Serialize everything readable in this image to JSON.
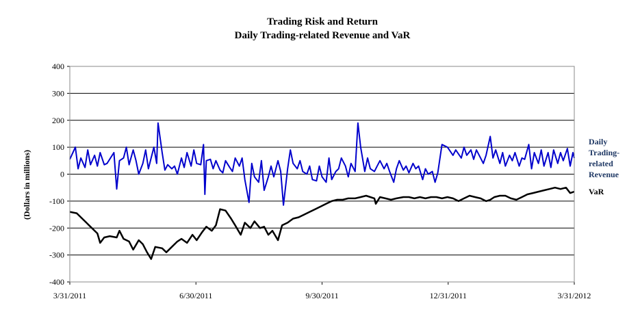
{
  "chart_data": {
    "type": "line",
    "title_line1": "Trading Risk and Return",
    "title_line2": "Daily Trading-related Revenue and VaR",
    "ylabel": "(Dollars in millions)",
    "xlabel": "",
    "ylim": [
      -400,
      400
    ],
    "yticks": [
      400,
      300,
      200,
      100,
      0,
      -100,
      -200,
      -300,
      -400
    ],
    "ytick_labels": [
      "400",
      "300",
      "200",
      "100",
      "0",
      "-100",
      "-200",
      "-300",
      "-400"
    ],
    "xlim": [
      "2011-03-31",
      "2012-03-31"
    ],
    "xtick_labels": [
      "3/31/2011",
      "6/30/2011",
      "9/30/2011",
      "12/31/2011",
      "3/31/2012"
    ],
    "grid": "horizontal",
    "legend_placement": "right",
    "series": [
      {
        "name": "Daily Trading-related Revenue",
        "label_lines": [
          "Daily",
          "Trading-",
          "related",
          "Revenue"
        ],
        "color": "#0000cc",
        "points": [
          [
            "2011-03-31",
            55
          ],
          [
            "2011-04-04",
            100
          ],
          [
            "2011-04-06",
            20
          ],
          [
            "2011-04-08",
            60
          ],
          [
            "2011-04-11",
            25
          ],
          [
            "2011-04-13",
            90
          ],
          [
            "2011-04-15",
            35
          ],
          [
            "2011-04-18",
            70
          ],
          [
            "2011-04-20",
            30
          ],
          [
            "2011-04-22",
            80
          ],
          [
            "2011-04-25",
            35
          ],
          [
            "2011-04-27",
            40
          ],
          [
            "2011-05-02",
            80
          ],
          [
            "2011-05-04",
            -55
          ],
          [
            "2011-05-06",
            50
          ],
          [
            "2011-05-09",
            60
          ],
          [
            "2011-05-11",
            100
          ],
          [
            "2011-05-13",
            35
          ],
          [
            "2011-05-16",
            90
          ],
          [
            "2011-05-18",
            50
          ],
          [
            "2011-05-20",
            0
          ],
          [
            "2011-05-23",
            40
          ],
          [
            "2011-05-25",
            90
          ],
          [
            "2011-05-27",
            20
          ],
          [
            "2011-05-31",
            100
          ],
          [
            "2011-06-02",
            40
          ],
          [
            "2011-06-03",
            190
          ],
          [
            "2011-06-06",
            80
          ],
          [
            "2011-06-08",
            15
          ],
          [
            "2011-06-10",
            35
          ],
          [
            "2011-06-13",
            20
          ],
          [
            "2011-06-15",
            30
          ],
          [
            "2011-06-17",
            0
          ],
          [
            "2011-06-20",
            60
          ],
          [
            "2011-06-22",
            25
          ],
          [
            "2011-06-24",
            80
          ],
          [
            "2011-06-27",
            30
          ],
          [
            "2011-06-29",
            90
          ],
          [
            "2011-07-01",
            40
          ],
          [
            "2011-07-04",
            35
          ],
          [
            "2011-07-06",
            110
          ],
          [
            "2011-07-07",
            -75
          ],
          [
            "2011-07-08",
            50
          ],
          [
            "2011-07-11",
            55
          ],
          [
            "2011-07-13",
            20
          ],
          [
            "2011-07-15",
            50
          ],
          [
            "2011-07-18",
            15
          ],
          [
            "2011-07-20",
            5
          ],
          [
            "2011-07-22",
            50
          ],
          [
            "2011-07-25",
            25
          ],
          [
            "2011-07-27",
            10
          ],
          [
            "2011-07-29",
            60
          ],
          [
            "2011-08-01",
            30
          ],
          [
            "2011-08-03",
            60
          ],
          [
            "2011-08-05",
            -20
          ],
          [
            "2011-08-08",
            -105
          ],
          [
            "2011-08-10",
            40
          ],
          [
            "2011-08-12",
            -10
          ],
          [
            "2011-08-15",
            -30
          ],
          [
            "2011-08-17",
            50
          ],
          [
            "2011-08-19",
            -60
          ],
          [
            "2011-08-22",
            -10
          ],
          [
            "2011-08-24",
            30
          ],
          [
            "2011-08-26",
            -10
          ],
          [
            "2011-08-29",
            50
          ],
          [
            "2011-08-31",
            10
          ],
          [
            "2011-09-02",
            -115
          ],
          [
            "2011-09-05",
            20
          ],
          [
            "2011-09-07",
            90
          ],
          [
            "2011-09-09",
            40
          ],
          [
            "2011-09-12",
            20
          ],
          [
            "2011-09-14",
            50
          ],
          [
            "2011-09-16",
            10
          ],
          [
            "2011-09-19",
            0
          ],
          [
            "2011-09-21",
            30
          ],
          [
            "2011-09-23",
            -20
          ],
          [
            "2011-09-26",
            -25
          ],
          [
            "2011-09-28",
            30
          ],
          [
            "2011-09-30",
            -10
          ],
          [
            "2011-10-03",
            -30
          ],
          [
            "2011-10-05",
            60
          ],
          [
            "2011-10-07",
            -20
          ],
          [
            "2011-10-10",
            10
          ],
          [
            "2011-10-12",
            20
          ],
          [
            "2011-10-14",
            60
          ],
          [
            "2011-10-17",
            30
          ],
          [
            "2011-10-19",
            -10
          ],
          [
            "2011-10-21",
            40
          ],
          [
            "2011-10-24",
            10
          ],
          [
            "2011-10-26",
            190
          ],
          [
            "2011-10-28",
            100
          ],
          [
            "2011-10-31",
            10
          ],
          [
            "2011-11-02",
            60
          ],
          [
            "2011-11-04",
            20
          ],
          [
            "2011-11-07",
            10
          ],
          [
            "2011-11-09",
            30
          ],
          [
            "2011-11-11",
            50
          ],
          [
            "2011-11-14",
            20
          ],
          [
            "2011-11-16",
            40
          ],
          [
            "2011-11-18",
            10
          ],
          [
            "2011-11-21",
            -30
          ],
          [
            "2011-11-23",
            20
          ],
          [
            "2011-11-25",
            50
          ],
          [
            "2011-11-28",
            15
          ],
          [
            "2011-11-30",
            30
          ],
          [
            "2011-12-02",
            5
          ],
          [
            "2011-12-05",
            40
          ],
          [
            "2011-12-07",
            20
          ],
          [
            "2011-12-09",
            30
          ],
          [
            "2011-12-12",
            -20
          ],
          [
            "2011-12-14",
            20
          ],
          [
            "2011-12-16",
            0
          ],
          [
            "2011-12-19",
            10
          ],
          [
            "2011-12-21",
            -30
          ],
          [
            "2011-12-23",
            5
          ],
          [
            "2011-12-26",
            110
          ],
          [
            "2011-12-28",
            105
          ],
          [
            "2011-12-30",
            100
          ],
          [
            "2012-01-03",
            70
          ],
          [
            "2012-01-05",
            90
          ],
          [
            "2012-01-09",
            60
          ],
          [
            "2012-01-11",
            100
          ],
          [
            "2012-01-13",
            70
          ],
          [
            "2012-01-16",
            90
          ],
          [
            "2012-01-18",
            55
          ],
          [
            "2012-01-20",
            90
          ],
          [
            "2012-01-23",
            60
          ],
          [
            "2012-01-25",
            40
          ],
          [
            "2012-01-27",
            70
          ],
          [
            "2012-01-30",
            140
          ],
          [
            "2012-02-01",
            60
          ],
          [
            "2012-02-03",
            90
          ],
          [
            "2012-02-06",
            40
          ],
          [
            "2012-02-08",
            80
          ],
          [
            "2012-02-10",
            30
          ],
          [
            "2012-02-13",
            70
          ],
          [
            "2012-02-15",
            50
          ],
          [
            "2012-02-17",
            80
          ],
          [
            "2012-02-20",
            30
          ],
          [
            "2012-02-22",
            60
          ],
          [
            "2012-02-24",
            55
          ],
          [
            "2012-02-27",
            110
          ],
          [
            "2012-02-29",
            20
          ],
          [
            "2012-03-02",
            80
          ],
          [
            "2012-03-05",
            40
          ],
          [
            "2012-03-07",
            90
          ],
          [
            "2012-03-09",
            30
          ],
          [
            "2012-03-12",
            80
          ],
          [
            "2012-03-14",
            25
          ],
          [
            "2012-03-16",
            90
          ],
          [
            "2012-03-19",
            40
          ],
          [
            "2012-03-21",
            80
          ],
          [
            "2012-03-23",
            50
          ],
          [
            "2012-03-26",
            95
          ],
          [
            "2012-03-28",
            30
          ],
          [
            "2012-03-30",
            80
          ],
          [
            "2012-03-31",
            60
          ]
        ]
      },
      {
        "name": "VaR",
        "label_lines": [
          "VaR"
        ],
        "color": "#000000",
        "points": [
          [
            "2011-03-31",
            -140
          ],
          [
            "2011-04-05",
            -145
          ],
          [
            "2011-04-10",
            -170
          ],
          [
            "2011-04-15",
            -195
          ],
          [
            "2011-04-20",
            -220
          ],
          [
            "2011-04-22",
            -255
          ],
          [
            "2011-04-25",
            -235
          ],
          [
            "2011-04-29",
            -230
          ],
          [
            "2011-05-04",
            -235
          ],
          [
            "2011-05-06",
            -210
          ],
          [
            "2011-05-09",
            -240
          ],
          [
            "2011-05-13",
            -250
          ],
          [
            "2011-05-16",
            -280
          ],
          [
            "2011-05-20",
            -245
          ],
          [
            "2011-05-23",
            -260
          ],
          [
            "2011-05-26",
            -290
          ],
          [
            "2011-05-29",
            -315
          ],
          [
            "2011-06-01",
            -270
          ],
          [
            "2011-06-06",
            -275
          ],
          [
            "2011-06-09",
            -290
          ],
          [
            "2011-06-13",
            -270
          ],
          [
            "2011-06-17",
            -250
          ],
          [
            "2011-06-20",
            -240
          ],
          [
            "2011-06-24",
            -255
          ],
          [
            "2011-06-28",
            -225
          ],
          [
            "2011-07-01",
            -245
          ],
          [
            "2011-07-05",
            -215
          ],
          [
            "2011-07-08",
            -195
          ],
          [
            "2011-07-12",
            -210
          ],
          [
            "2011-07-15",
            -190
          ],
          [
            "2011-07-18",
            -130
          ],
          [
            "2011-07-22",
            -135
          ],
          [
            "2011-07-26",
            -165
          ],
          [
            "2011-07-29",
            -190
          ],
          [
            "2011-08-02",
            -225
          ],
          [
            "2011-08-05",
            -180
          ],
          [
            "2011-08-09",
            -200
          ],
          [
            "2011-08-12",
            -175
          ],
          [
            "2011-08-16",
            -200
          ],
          [
            "2011-08-19",
            -195
          ],
          [
            "2011-08-22",
            -225
          ],
          [
            "2011-08-25",
            -210
          ],
          [
            "2011-08-29",
            -245
          ],
          [
            "2011-09-01",
            -190
          ],
          [
            "2011-09-05",
            -180
          ],
          [
            "2011-09-09",
            -165
          ],
          [
            "2011-09-13",
            -160
          ],
          [
            "2011-09-17",
            -150
          ],
          [
            "2011-09-21",
            -140
          ],
          [
            "2011-09-25",
            -130
          ],
          [
            "2011-09-29",
            -120
          ],
          [
            "2011-10-03",
            -110
          ],
          [
            "2011-10-07",
            -100
          ],
          [
            "2011-10-11",
            -95
          ],
          [
            "2011-10-15",
            -95
          ],
          [
            "2011-10-19",
            -90
          ],
          [
            "2011-10-24",
            -90
          ],
          [
            "2011-10-28",
            -85
          ],
          [
            "2011-11-01",
            -80
          ],
          [
            "2011-11-04",
            -85
          ],
          [
            "2011-11-07",
            -90
          ],
          [
            "2011-11-08",
            -110
          ],
          [
            "2011-11-11",
            -85
          ],
          [
            "2011-11-15",
            -90
          ],
          [
            "2011-11-19",
            -95
          ],
          [
            "2011-11-23",
            -90
          ],
          [
            "2011-11-28",
            -85
          ],
          [
            "2011-12-02",
            -85
          ],
          [
            "2011-12-06",
            -90
          ],
          [
            "2011-12-10",
            -85
          ],
          [
            "2011-12-14",
            -90
          ],
          [
            "2011-12-18",
            -85
          ],
          [
            "2011-12-22",
            -85
          ],
          [
            "2011-12-26",
            -90
          ],
          [
            "2011-12-30",
            -85
          ],
          [
            "2012-01-03",
            -90
          ],
          [
            "2012-01-07",
            -100
          ],
          [
            "2012-01-11",
            -90
          ],
          [
            "2012-01-15",
            -80
          ],
          [
            "2012-01-19",
            -85
          ],
          [
            "2012-01-23",
            -90
          ],
          [
            "2012-01-27",
            -100
          ],
          [
            "2012-01-30",
            -95
          ],
          [
            "2012-02-02",
            -85
          ],
          [
            "2012-02-06",
            -80
          ],
          [
            "2012-02-10",
            -80
          ],
          [
            "2012-02-14",
            -90
          ],
          [
            "2012-02-18",
            -95
          ],
          [
            "2012-02-22",
            -85
          ],
          [
            "2012-02-26",
            -75
          ],
          [
            "2012-03-01",
            -70
          ],
          [
            "2012-03-05",
            -65
          ],
          [
            "2012-03-09",
            -60
          ],
          [
            "2012-03-13",
            -55
          ],
          [
            "2012-03-17",
            -50
          ],
          [
            "2012-03-21",
            -55
          ],
          [
            "2012-03-25",
            -50
          ],
          [
            "2012-03-28",
            -70
          ],
          [
            "2012-03-31",
            -65
          ]
        ]
      }
    ]
  }
}
